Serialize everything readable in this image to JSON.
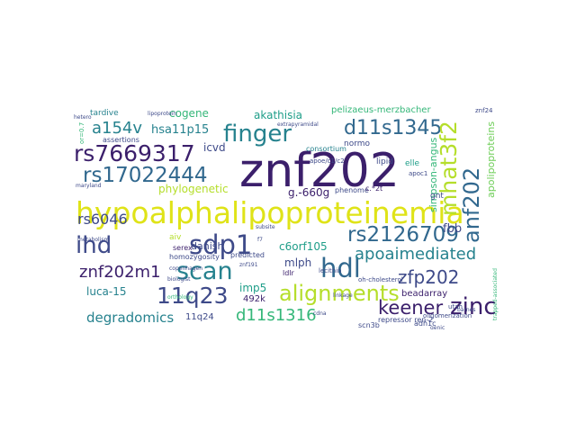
{
  "palette": {
    "dark_purple": "#3b1f6b",
    "indigo": "#3e4a89",
    "blue": "#31688e",
    "teal": "#26828e",
    "green_teal": "#1f9e89",
    "green": "#35b779",
    "lime": "#6ece58",
    "yellow_green": "#b5de2b",
    "yellow": "#dfe318"
  },
  "words": {
    "znf202": "znf202",
    "hypoalphalipoproteinemia": "hypoalphalipoproteinemia",
    "sdp1": "sdp1",
    "finger": "finger",
    "d11s1345": "d11s1345",
    "rs7669317": "rs7669317",
    "rs17022444": "rs17022444",
    "ihd": "ihd",
    "scan": "scan",
    "hdl": "hdl",
    "alignments": "alignments",
    "zinc": "zinc",
    "keener": "keener",
    "11q23": "11q23",
    "rs2126709": "rs2126709",
    "apoaimediated": "apoaimediated",
    "a154v": "a154v",
    "anf202": "anf202",
    "mhat3f2": "mhat3f2",
    "rs6046": "rs6046",
    "zfp202": "zfp202",
    "znf202m1": "znf202m1",
    "d11s1316": "d11s1316",
    "degradomics": "degradomics",
    "apolipoproteins": "apolipoproteins",
    "simpson_angus": "simpson-angus",
    "hsa11p15": "hsa11p15",
    "cogene": "cogene",
    "akathisia": "akathisia",
    "phylogenetic": "phylogenetic",
    "icvd": "icvd",
    "fbb": "fbb",
    "g660g": "g.-660g",
    "danish": "danish",
    "mlph": "mlph",
    "imp5": "imp5",
    "c6orf105": "c6orf105",
    "luca15": "luca-15",
    "beadarray": "beadarray",
    "k492": "492k",
    "q11q24": "11q24",
    "pelizaeus": "pelizaeus-merzbacher",
    "tardive": "tardive",
    "elle": "elle",
    "normo": "normo",
    "lipid": "lipid",
    "consortium": "consortium",
    "assertions": "assertions",
    "apoe": "apoe/c1/c2",
    "gnt": "gnt",
    "phenome": "phenome",
    "c2t": "c.*2t",
    "aiv": "aiv",
    "serex": "serex",
    "predicted": "predicted",
    "ldlr": "ldlr",
    "lecithin": "lecithin",
    "homozygosity": "homozygosity",
    "oligomerization": "oligomerization",
    "repressor": "repressor ren-2",
    "scn3b": "scn3b",
    "adh1c": "adh1c",
    "ohchol": "oh-cholesterol",
    "apoc1": "apoc1",
    "utah": "utah",
    "znf24": "znf24",
    "copenhagen": "copenhagen",
    "biologist": "biologist",
    "linkage": "linkage",
    "ortho": "orthology",
    "subsite": "subsite",
    "lipoprotein": "lipoprotein",
    "extrapyramidal": "extrapyramidal",
    "maryland": "maryland",
    "metabolism": "metabolism",
    "hetero": "hetero",
    "or07": "or=0.7",
    "genic": "genic",
    "f7": "f7",
    "barnes": "barnes",
    "cdna": "cdna",
    "znf191": "znf191",
    "trapped": "trapped-associated"
  }
}
